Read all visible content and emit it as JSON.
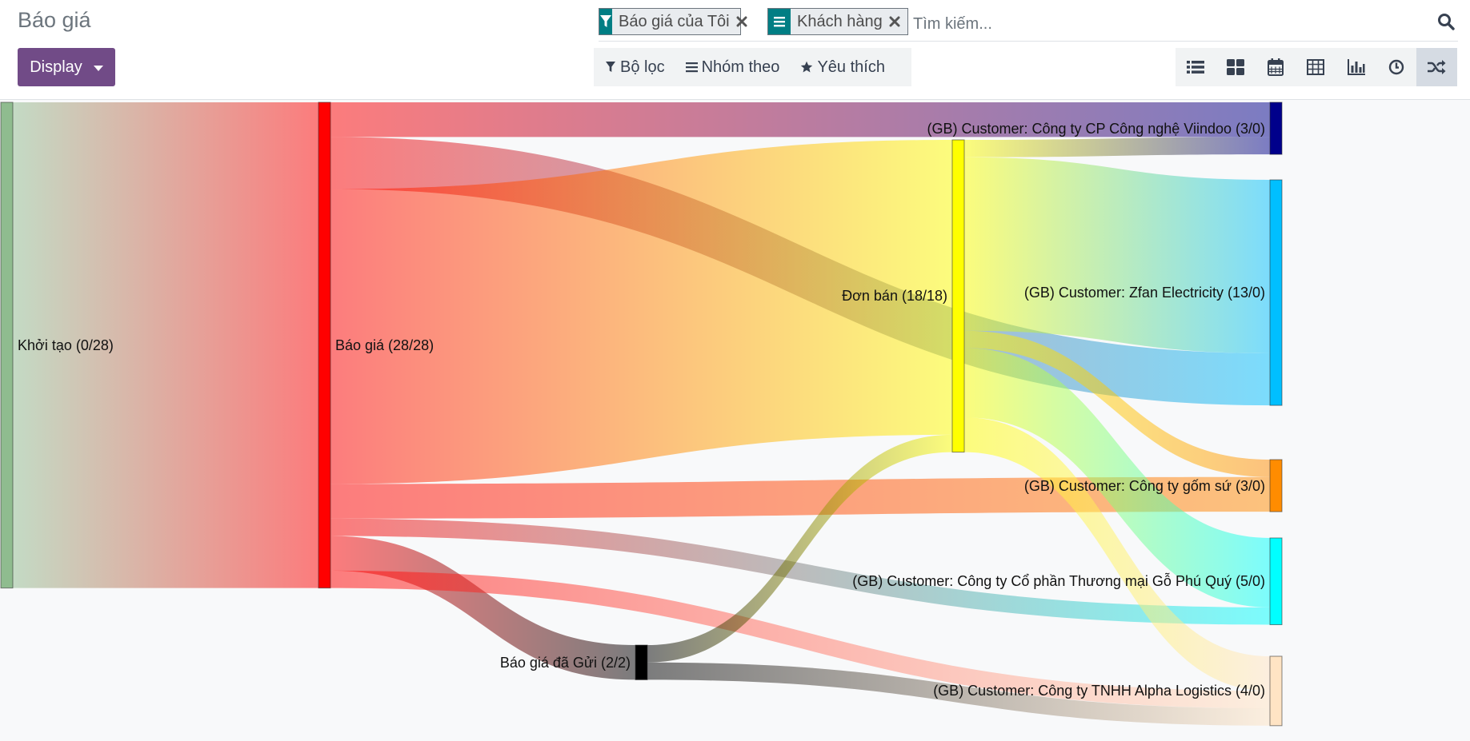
{
  "page": {
    "title": "Báo giá"
  },
  "toolbar": {
    "display_label": "Display"
  },
  "search": {
    "placeholder": "Tìm kiếm...",
    "facets": [
      {
        "icon": "filter-icon",
        "label": "Báo giá của Tôi"
      },
      {
        "icon": "group-by-icon",
        "label": "Khách hàng"
      }
    ]
  },
  "filter_menu": {
    "filters_label": "Bộ lọc",
    "groupby_label": "Nhóm theo",
    "favorites_label": "Yêu thích"
  },
  "views": [
    "list-view-icon",
    "kanban-view-icon",
    "calendar-view-icon",
    "pivot-view-icon",
    "graph-view-icon",
    "activity-view-icon",
    "sankey-view-icon"
  ],
  "sankey": {
    "nodes": [
      {
        "id": "init",
        "label": "Khởi tạo (0/28)",
        "color": "#8fbc8f",
        "value": 28
      },
      {
        "id": "quote",
        "label": "Báo giá (28/28)",
        "color": "#ff0000",
        "value": 28
      },
      {
        "id": "sent",
        "label": "Báo giá đã Gửi (2/2)",
        "color": "#000000",
        "value": 2
      },
      {
        "id": "order",
        "label": "Đơn bán (18/18)",
        "color": "#ffff00",
        "value": 18
      },
      {
        "id": "viindoo",
        "label": "(GB) Customer: Công ty CP Công nghệ Viindoo (3/0)",
        "color": "#00008b",
        "value": 3
      },
      {
        "id": "zfan",
        "label": "(GB) Customer: Zfan Electricity (13/0)",
        "color": "#00bfff",
        "value": 13
      },
      {
        "id": "gomsu",
        "label": "(GB) Customer: Công ty gốm sứ (3/0)",
        "color": "#ff8c00",
        "value": 3
      },
      {
        "id": "phuquy",
        "label": "(GB) Customer: Công ty Cổ phần Thương mại Gỗ Phú Quý (5/0)",
        "color": "#00ffff",
        "value": 5
      },
      {
        "id": "alpha",
        "label": "(GB) Customer: Công ty TNHH Alpha Logistics (4/0)",
        "color": "#ffe4c4",
        "value": 4
      }
    ],
    "links": [
      {
        "source": "init",
        "target": "quote",
        "value": 28
      },
      {
        "source": "quote",
        "target": "viindoo",
        "value": 2
      },
      {
        "source": "quote",
        "target": "zfan",
        "value": 3
      },
      {
        "source": "quote",
        "target": "order",
        "value": 17
      },
      {
        "source": "quote",
        "target": "gomsu",
        "value": 2
      },
      {
        "source": "quote",
        "target": "phuquy",
        "value": 1
      },
      {
        "source": "quote",
        "target": "sent",
        "value": 2
      },
      {
        "source": "quote",
        "target": "alpha",
        "value": 1
      },
      {
        "source": "sent",
        "target": "order",
        "value": 1
      },
      {
        "source": "sent",
        "target": "alpha",
        "value": 1
      },
      {
        "source": "order",
        "target": "viindoo",
        "value": 1
      },
      {
        "source": "order",
        "target": "zfan",
        "value": 10
      },
      {
        "source": "order",
        "target": "gomsu",
        "value": 1
      },
      {
        "source": "order",
        "target": "phuquy",
        "value": 4
      },
      {
        "source": "order",
        "target": "alpha",
        "value": 2
      }
    ]
  }
}
